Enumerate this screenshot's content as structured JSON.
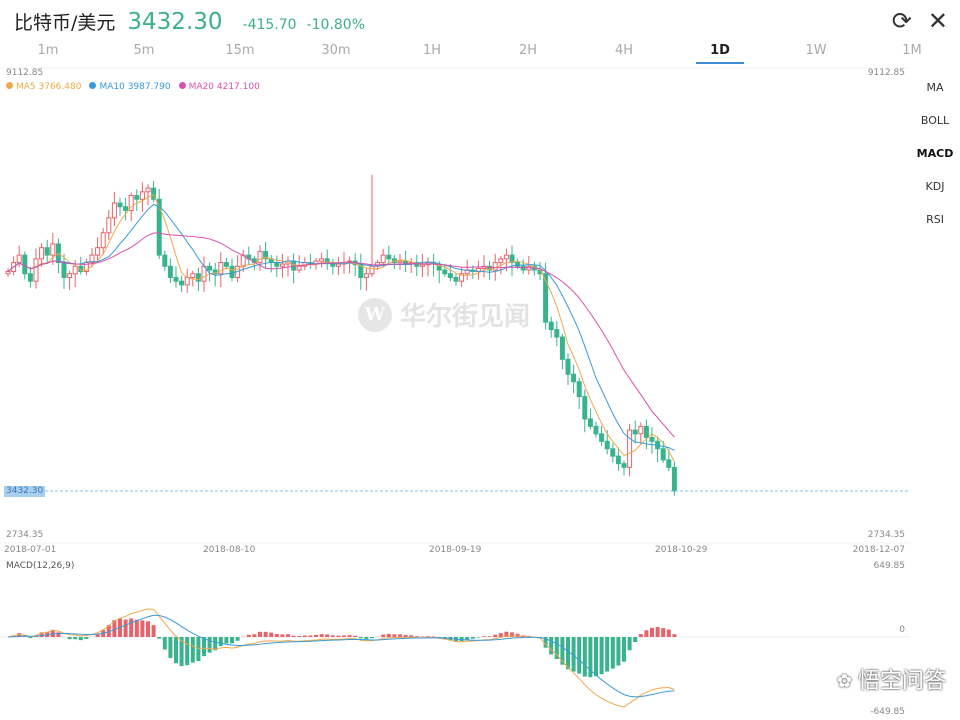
{
  "header": {
    "pair": "比特币/美元",
    "price": "3432.30",
    "change": "-415.70",
    "change_pct": "-10.80%"
  },
  "icons": {
    "refresh": "refresh-icon",
    "close": "close-icon"
  },
  "tabs": [
    {
      "label": "1m"
    },
    {
      "label": "5m"
    },
    {
      "label": "15m"
    },
    {
      "label": "30m"
    },
    {
      "label": "1H"
    },
    {
      "label": "2H"
    },
    {
      "label": "4H"
    },
    {
      "label": "1D",
      "active": true
    },
    {
      "label": "1W"
    },
    {
      "label": "1M"
    }
  ],
  "indicators": [
    "MA",
    "BOLL",
    "MACD",
    "KDJ",
    "RSI"
  ],
  "active_indicator": "MACD",
  "legend": {
    "ma5": "MA5 3766.480",
    "ma10": "MA10 3987.790",
    "ma20": "MA20 4217.100"
  },
  "colors": {
    "up": "#e8626a",
    "down": "#37b48e",
    "ma5": "#f0a94a",
    "ma10": "#3a9ad9",
    "ma20": "#d94fae",
    "accent": "#3b8fd6"
  },
  "watermark": "华尔街见闻",
  "corner_logo": "悟空问答",
  "chart_data": {
    "type": "candlestick",
    "price_max": "9112.85",
    "price_min": "2734.35",
    "current": "3432.30",
    "x_ticks": [
      "2018-07-01",
      "2018-08-10",
      "2018-09-19",
      "2018-10-29",
      "2018-12-07"
    ],
    "macd_label": "MACD(12,26,9)",
    "macd_max": "649.85",
    "macd_zero": "0",
    "macd_min": "-649.85",
    "first_open": 6350,
    "spike": {
      "index": 65,
      "high": 7680
    },
    "closes": [
      6380,
      6500,
      6600,
      6350,
      6250,
      6550,
      6700,
      6600,
      6750,
      6500,
      6300,
      6350,
      6450,
      6380,
      6500,
      6600,
      6700,
      6900,
      7100,
      7300,
      7250,
      7200,
      7400,
      7350,
      7450,
      7500,
      7350,
      6600,
      6450,
      6300,
      6250,
      6200,
      6300,
      6350,
      6250,
      6450,
      6400,
      6350,
      6500,
      6450,
      6300,
      6450,
      6600,
      6550,
      6500,
      6650,
      6550,
      6500,
      6450,
      6480,
      6520,
      6400,
      6450,
      6500,
      6480,
      6520,
      6550,
      6500,
      6450,
      6480,
      6500,
      6520,
      6470,
      6300,
      6350,
      6450,
      6500,
      6600,
      6550,
      6500,
      6520,
      6480,
      6500,
      6450,
      6470,
      6500,
      6480,
      6400,
      6350,
      6300,
      6250,
      6350,
      6400,
      6380,
      6420,
      6450,
      6400,
      6500,
      6550,
      6600,
      6500,
      6450,
      6400,
      6450,
      6400,
      6350,
      5700,
      5600,
      5500,
      5200,
      5000,
      4900,
      4700,
      4400,
      4300,
      4200,
      4100,
      4000,
      3900,
      3800,
      3750,
      4250,
      4200,
      4300,
      4150,
      4100,
      4000,
      3850,
      3750,
      3432.3
    ]
  }
}
